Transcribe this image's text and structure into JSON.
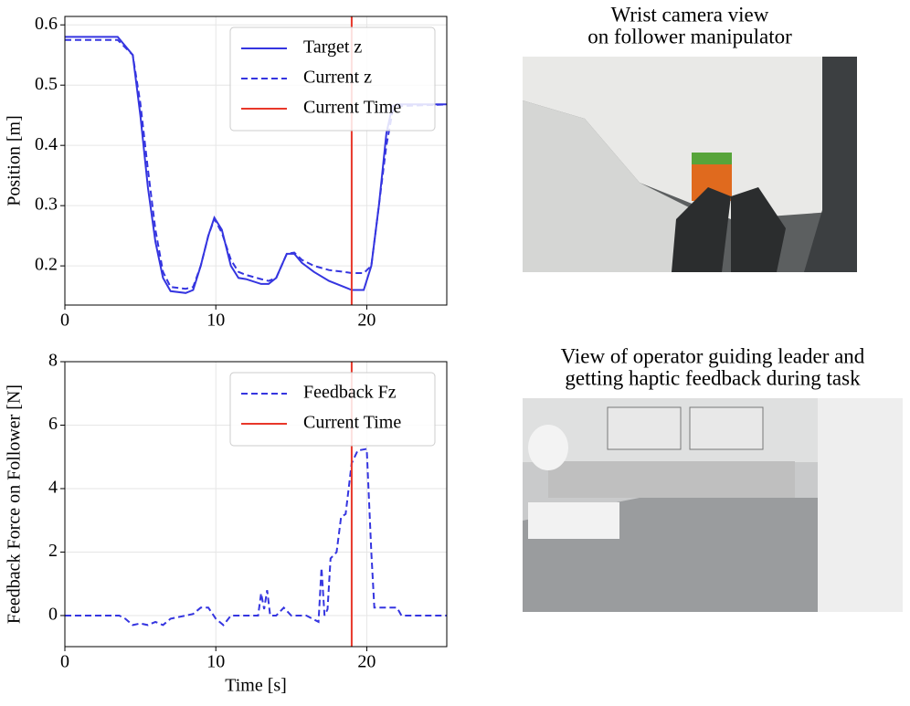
{
  "chart_data": [
    {
      "type": "line",
      "ylabel": "Position [m]",
      "x": [
        0,
        3.5,
        4.5,
        5,
        5.5,
        6,
        6.5,
        7,
        8,
        8.5,
        9,
        9.5,
        9.9,
        10.4,
        11,
        11.5,
        12,
        13,
        13.5,
        14,
        14.7,
        15.2,
        15.7,
        16.5,
        17.5,
        18.5,
        19,
        19.8,
        20.3,
        20.8,
        21.3,
        21.7,
        22,
        25.3
      ],
      "series": [
        {
          "name": "Target z",
          "color": "#3535e0",
          "dash": false,
          "values": [
            0.58,
            0.58,
            0.55,
            0.45,
            0.33,
            0.24,
            0.18,
            0.158,
            0.155,
            0.16,
            0.2,
            0.25,
            0.28,
            0.26,
            0.2,
            0.18,
            0.178,
            0.17,
            0.17,
            0.18,
            0.22,
            0.22,
            0.205,
            0.19,
            0.175,
            0.165,
            0.16,
            0.16,
            0.2,
            0.3,
            0.42,
            0.465,
            0.468,
            0.468
          ]
        },
        {
          "name": "Current z",
          "color": "#3535e0",
          "dash": true,
          "values": [
            0.575,
            0.575,
            0.55,
            0.47,
            0.36,
            0.26,
            0.19,
            0.165,
            0.162,
            0.165,
            0.2,
            0.25,
            0.278,
            0.255,
            0.21,
            0.19,
            0.185,
            0.178,
            0.175,
            0.18,
            0.22,
            0.222,
            0.21,
            0.2,
            0.193,
            0.19,
            0.188,
            0.188,
            0.2,
            0.3,
            0.4,
            0.455,
            0.465,
            0.468
          ]
        }
      ],
      "vlines": [
        {
          "name": "Current Time",
          "color": "#e8372a",
          "x": 19
        }
      ],
      "xlim": [
        0,
        25.3
      ],
      "xticks": [
        0,
        10,
        20
      ],
      "ylim": [
        0.135,
        0.614
      ],
      "yticks": [
        0.2,
        0.3,
        0.4,
        0.5,
        0.6
      ],
      "grid": true
    },
    {
      "type": "line",
      "xlabel": "Time [s]",
      "ylabel": "Feedback Force on Follower [N]",
      "x": [
        0,
        3.6,
        4,
        4.5,
        5,
        5.5,
        6,
        6.5,
        7,
        8,
        8.5,
        9,
        9.5,
        10,
        10.5,
        11,
        12,
        12.8,
        13,
        13.2,
        13.4,
        13.6,
        14,
        14.5,
        15,
        16,
        16.8,
        17,
        17.2,
        17.4,
        17.6,
        18,
        18.3,
        18.6,
        19,
        19.4,
        20,
        20.3,
        20.5,
        21,
        22,
        22.3,
        25.3
      ],
      "series": [
        {
          "name": "Feedback Fz",
          "color": "#3535e0",
          "dash": true,
          "values": [
            0,
            0,
            -0.1,
            -0.3,
            -0.25,
            -0.3,
            -0.2,
            -0.3,
            -0.1,
            0,
            0.05,
            0.25,
            0.25,
            -0.1,
            -0.3,
            0,
            0,
            0,
            0.7,
            0.2,
            0.8,
            0,
            0,
            0.25,
            0,
            0,
            -0.2,
            1.5,
            0,
            0.2,
            1.8,
            2.0,
            3.1,
            3.2,
            4.8,
            5.2,
            5.25,
            2,
            0.25,
            0.25,
            0.25,
            0,
            0
          ]
        }
      ],
      "vlines": [
        {
          "name": "Current Time",
          "color": "#e8372a",
          "x": 19
        }
      ],
      "xlim": [
        0,
        25.3
      ],
      "xticks": [
        0,
        10,
        20
      ],
      "ylim": [
        -0.98,
        8
      ],
      "yticks": [
        0,
        2,
        4,
        6,
        8
      ],
      "grid": true
    }
  ],
  "images": [
    {
      "title_lines": [
        "Wrist camera view",
        "on follower manipulator"
      ]
    },
    {
      "title_lines": [
        "View of operator guiding leader and",
        "getting haptic feedback during task"
      ]
    }
  ]
}
